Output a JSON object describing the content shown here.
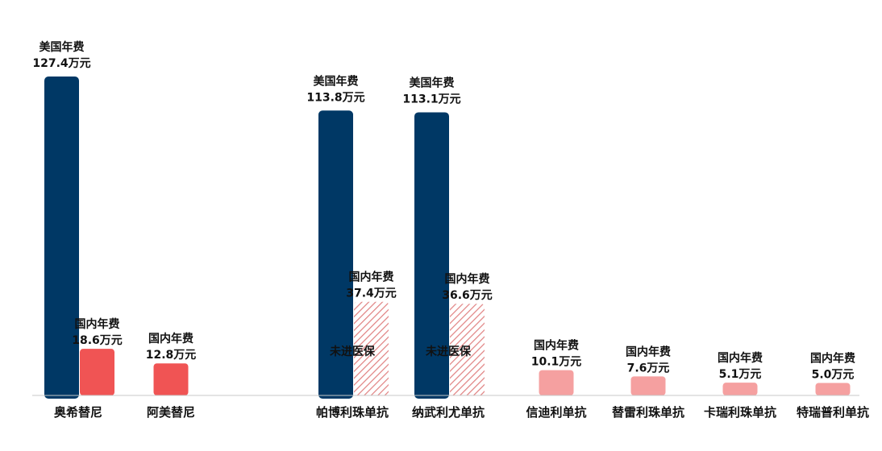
{
  "chart_data": {
    "type": "bar",
    "title": "",
    "xlabel": "",
    "ylabel": "",
    "ylim": [
      0,
      135
    ],
    "grid": false,
    "categories": [
      "奥希替尼",
      "阿美替尼",
      "帕博利珠单抗",
      "纳武利尤单抗",
      "信迪利单抗",
      "替雷利珠单抗",
      "卡瑞利珠单抗",
      "特瑞普利单抗"
    ],
    "series": [
      {
        "name": "美国年费",
        "color": "#003865",
        "values": [
          127.4,
          null,
          113.8,
          113.1,
          null,
          null,
          null,
          null
        ],
        "label_title": "美国年费",
        "labels": [
          "127.4万元",
          "",
          "113.8万元",
          "113.1万元",
          "",
          "",
          "",
          ""
        ]
      },
      {
        "name": "国内年费",
        "values": [
          18.6,
          12.8,
          37.4,
          36.6,
          10.1,
          7.6,
          5.1,
          5.0
        ],
        "label_title": "国内年费",
        "labels": [
          "18.6万元",
          "12.8万元",
          "37.4万元",
          "36.6万元",
          "10.1万元",
          "7.6万元",
          "5.1万元",
          "5.0万元"
        ],
        "colors": [
          "#f05454",
          "#f05454",
          "hatch",
          "hatch",
          "#f5a0a0",
          "#f5a0a0",
          "#f5a0a0",
          "#f5a0a0"
        ],
        "notes": [
          "",
          "",
          "未进医保",
          "未进医保",
          "",
          "",
          "",
          ""
        ]
      }
    ],
    "hatch_color": "#e08080",
    "axis_color": "#c8c8c8"
  }
}
